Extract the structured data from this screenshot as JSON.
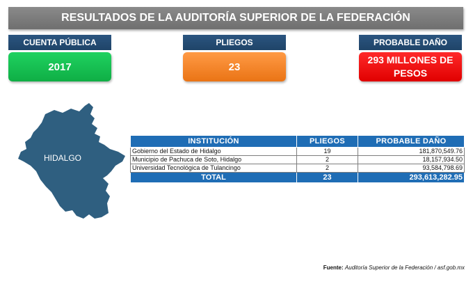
{
  "header": {
    "title": "RESULTADOS DE LA AUDITORÍA SUPERIOR DE LA FEDERACIÓN"
  },
  "kpis": [
    {
      "label": "CUENTA PÚBLICA",
      "value": "2017",
      "color": "#11b04a"
    },
    {
      "label": "PLIEGOS",
      "value": "23",
      "color": "#f07a1c"
    },
    {
      "label": "PROBABLE DAÑO",
      "value": "293 MILLONES DE PESOS",
      "color": "#f00000"
    }
  ],
  "map": {
    "label": "HIDALGO",
    "color": "#2f5f80"
  },
  "table": {
    "headers": [
      "INSTITUCIÓN",
      "PLIEGOS",
      "PROBABLE DAÑO"
    ],
    "rows": [
      {
        "institucion": "Gobierno del Estado de Hidalgo",
        "pliegos": "19",
        "dano": "181,870,549.76"
      },
      {
        "institucion": "Municipio de Pachuca de Soto, Hidalgo",
        "pliegos": "2",
        "dano": "18,157,934.50"
      },
      {
        "institucion": "Universidad Tecnológica de Tulancingo",
        "pliegos": "2",
        "dano": "93,584,798.69"
      }
    ],
    "total": {
      "label": "TOTAL",
      "pliegos": "23",
      "dano": "293,613,282.95"
    },
    "header_color": "#1f6db5"
  },
  "source": {
    "label": "Fuente:",
    "text": "Auditoría Superior de la Federación / asf.gob.mx"
  }
}
